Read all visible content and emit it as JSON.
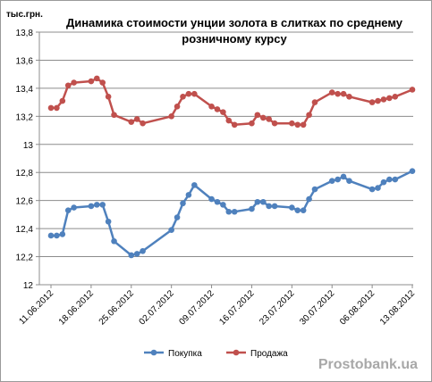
{
  "chart_data": {
    "type": "line",
    "title_lines": [
      "Динамика стоимости унции золота в слитках по среднему",
      "розничному курсу"
    ],
    "y_unit_label": "тыс.грн.",
    "ylim": [
      12,
      13.8
    ],
    "y_ticks": [
      "12",
      "12,2",
      "12,4",
      "12,6",
      "12,8",
      "13",
      "13,2",
      "13,4",
      "13,6",
      "13,8"
    ],
    "y_tick_values": [
      12,
      12.2,
      12.4,
      12.6,
      12.8,
      13,
      13.2,
      13.4,
      13.6,
      13.8
    ],
    "x_ticks": [
      "11.06.2012",
      "18.06.2012",
      "25.06.2012",
      "02.07.2012",
      "09.07.2012",
      "16.07.2012",
      "23.07.2012",
      "30.07.2012",
      "06.08.2012",
      "13.08.2012"
    ],
    "x_tick_dates": [
      "2012-06-11",
      "2012-06-18",
      "2012-06-25",
      "2012-07-02",
      "2012-07-09",
      "2012-07-16",
      "2012-07-23",
      "2012-07-30",
      "2012-08-06",
      "2012-08-13"
    ],
    "grid": "horizontal",
    "legend_position": "bottom",
    "series": [
      {
        "name": "Покупка",
        "color": "#4f81bd",
        "points": [
          [
            "2012-06-11",
            12.35
          ],
          [
            "2012-06-12",
            12.35
          ],
          [
            "2012-06-13",
            12.36
          ],
          [
            "2012-06-14",
            12.53
          ],
          [
            "2012-06-15",
            12.55
          ],
          [
            "2012-06-18",
            12.56
          ],
          [
            "2012-06-19",
            12.57
          ],
          [
            "2012-06-20",
            12.57
          ],
          [
            "2012-06-21",
            12.45
          ],
          [
            "2012-06-22",
            12.31
          ],
          [
            "2012-06-25",
            12.21
          ],
          [
            "2012-06-26",
            12.22
          ],
          [
            "2012-06-27",
            12.24
          ],
          [
            "2012-07-02",
            12.39
          ],
          [
            "2012-07-03",
            12.48
          ],
          [
            "2012-07-04",
            12.58
          ],
          [
            "2012-07-05",
            12.64
          ],
          [
            "2012-07-06",
            12.71
          ],
          [
            "2012-07-09",
            12.61
          ],
          [
            "2012-07-10",
            12.59
          ],
          [
            "2012-07-11",
            12.57
          ],
          [
            "2012-07-12",
            12.52
          ],
          [
            "2012-07-13",
            12.52
          ],
          [
            "2012-07-16",
            12.54
          ],
          [
            "2012-07-17",
            12.59
          ],
          [
            "2012-07-18",
            12.59
          ],
          [
            "2012-07-19",
            12.56
          ],
          [
            "2012-07-20",
            12.56
          ],
          [
            "2012-07-23",
            12.55
          ],
          [
            "2012-07-24",
            12.53
          ],
          [
            "2012-07-25",
            12.53
          ],
          [
            "2012-07-26",
            12.61
          ],
          [
            "2012-07-27",
            12.68
          ],
          [
            "2012-07-30",
            12.74
          ],
          [
            "2012-07-31",
            12.75
          ],
          [
            "2012-08-01",
            12.77
          ],
          [
            "2012-08-02",
            12.74
          ],
          [
            "2012-08-06",
            12.68
          ],
          [
            "2012-08-07",
            12.69
          ],
          [
            "2012-08-08",
            12.73
          ],
          [
            "2012-08-09",
            12.75
          ],
          [
            "2012-08-10",
            12.75
          ],
          [
            "2012-08-13",
            12.81
          ]
        ]
      },
      {
        "name": "Продажа",
        "color": "#c0504d",
        "points": [
          [
            "2012-06-11",
            13.26
          ],
          [
            "2012-06-12",
            13.26
          ],
          [
            "2012-06-13",
            13.31
          ],
          [
            "2012-06-14",
            13.42
          ],
          [
            "2012-06-15",
            13.44
          ],
          [
            "2012-06-18",
            13.45
          ],
          [
            "2012-06-19",
            13.47
          ],
          [
            "2012-06-20",
            13.44
          ],
          [
            "2012-06-21",
            13.34
          ],
          [
            "2012-06-22",
            13.21
          ],
          [
            "2012-06-25",
            13.16
          ],
          [
            "2012-06-26",
            13.18
          ],
          [
            "2012-06-27",
            13.15
          ],
          [
            "2012-07-02",
            13.2
          ],
          [
            "2012-07-03",
            13.27
          ],
          [
            "2012-07-04",
            13.34
          ],
          [
            "2012-07-05",
            13.36
          ],
          [
            "2012-07-06",
            13.36
          ],
          [
            "2012-07-09",
            13.27
          ],
          [
            "2012-07-10",
            13.25
          ],
          [
            "2012-07-11",
            13.23
          ],
          [
            "2012-07-12",
            13.17
          ],
          [
            "2012-07-13",
            13.14
          ],
          [
            "2012-07-16",
            13.15
          ],
          [
            "2012-07-17",
            13.21
          ],
          [
            "2012-07-18",
            13.19
          ],
          [
            "2012-07-19",
            13.18
          ],
          [
            "2012-07-20",
            13.15
          ],
          [
            "2012-07-23",
            13.15
          ],
          [
            "2012-07-24",
            13.14
          ],
          [
            "2012-07-25",
            13.14
          ],
          [
            "2012-07-26",
            13.21
          ],
          [
            "2012-07-27",
            13.3
          ],
          [
            "2012-07-30",
            13.37
          ],
          [
            "2012-07-31",
            13.36
          ],
          [
            "2012-08-01",
            13.36
          ],
          [
            "2012-08-02",
            13.34
          ],
          [
            "2012-08-06",
            13.3
          ],
          [
            "2012-08-07",
            13.31
          ],
          [
            "2012-08-08",
            13.32
          ],
          [
            "2012-08-09",
            13.33
          ],
          [
            "2012-08-10",
            13.34
          ],
          [
            "2012-08-13",
            13.39
          ]
        ]
      }
    ]
  },
  "watermark": "Prostobank.ua"
}
